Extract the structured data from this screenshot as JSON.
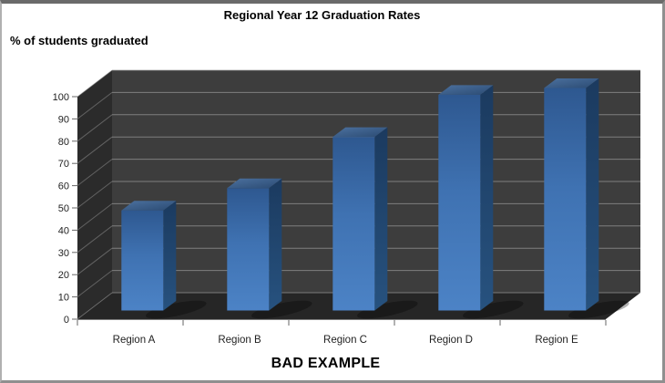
{
  "chart_data": {
    "type": "bar",
    "variant": "3d-column",
    "title": "Regional Year 12 Graduation Rates",
    "ylabel": "% of students graduated",
    "categories": [
      "Region A",
      "Region B",
      "Region C",
      "Region D",
      "Region E"
    ],
    "values": [
      45,
      55,
      78,
      97,
      100
    ],
    "ylim": [
      0,
      100
    ],
    "yticks": [
      0,
      10,
      20,
      30,
      40,
      50,
      60,
      70,
      80,
      90,
      100
    ],
    "grid": true,
    "legend": false,
    "colors": {
      "bar_front_top": "#2e5890",
      "bar_front_mid": "#3f72b2",
      "bar_front_bottom": "#4c83c6",
      "bar_top_near": "#4c719f",
      "bar_top_far": "#2b4b73",
      "bar_side_top": "#1b3a5f",
      "bar_side_bottom": "#27527f",
      "wall_back": "#3d3d3d",
      "wall_left": "#2b2b2b",
      "floor": "#262626",
      "gridline": "#9a9a9a",
      "axis_line": "#666666",
      "axis_text": "#1f1f1f"
    }
  },
  "caption": "BAD EXAMPLE"
}
